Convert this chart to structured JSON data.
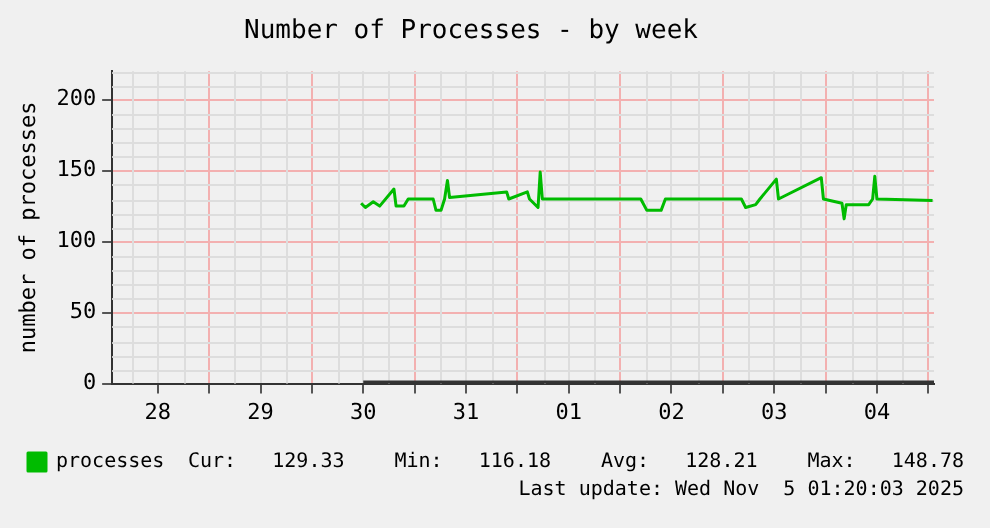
{
  "chart_data": {
    "type": "line",
    "title": "Number of Processes - by week",
    "ylabel": "number of processes",
    "xlim": [
      "2025-10-28T01:20",
      "2025-11-05T01:20"
    ],
    "xticks": [
      {
        "value": "2025-10-28T12:00",
        "label": "28"
      },
      {
        "value": "2025-10-29T00:00",
        "label": null
      },
      {
        "value": "2025-10-29T12:00",
        "label": "29"
      },
      {
        "value": "2025-10-30T00:00",
        "label": null
      },
      {
        "value": "2025-10-30T12:00",
        "label": "30"
      },
      {
        "value": "2025-10-31T00:00",
        "label": null
      },
      {
        "value": "2025-10-31T12:00",
        "label": "31"
      },
      {
        "value": "2025-11-01T00:00",
        "label": null
      },
      {
        "value": "2025-11-01T12:00",
        "label": "01"
      },
      {
        "value": "2025-11-02T00:00",
        "label": null
      },
      {
        "value": "2025-11-02T12:00",
        "label": "02"
      },
      {
        "value": "2025-11-03T00:00",
        "label": null
      },
      {
        "value": "2025-11-03T12:00",
        "label": "03"
      },
      {
        "value": "2025-11-04T00:00",
        "label": null
      },
      {
        "value": "2025-11-04T12:00",
        "label": "04"
      },
      {
        "value": "2025-11-05T00:00",
        "label": null
      }
    ],
    "ylim": [
      0,
      220
    ],
    "yticks": [
      0,
      50,
      100,
      150,
      200
    ],
    "grid": true,
    "legend": "bottom left",
    "marker": "none",
    "line_style": "solid",
    "series": [
      {
        "name": "processes",
        "color": "#00bb00",
        "x": [
          "2025-10-30T11:30",
          "2025-10-30T12:30",
          "2025-10-30T14:20",
          "2025-10-30T15:50",
          "2025-10-30T19:10",
          "2025-10-30T19:40",
          "2025-10-30T21:30",
          "2025-10-30T22:30",
          "2025-10-31T04:20",
          "2025-10-31T05:00",
          "2025-10-31T06:10",
          "2025-10-31T07:00",
          "2025-10-31T07:40",
          "2025-10-31T08:10",
          "2025-10-31T21:30",
          "2025-10-31T22:00",
          "2025-11-01T02:20",
          "2025-11-01T02:50",
          "2025-11-01T04:50",
          "2025-11-01T05:20",
          "2025-11-01T05:50",
          "2025-11-02T04:50",
          "2025-11-02T06:15",
          "2025-11-02T09:35",
          "2025-11-02T10:35",
          "2025-11-03T04:20",
          "2025-11-03T05:20",
          "2025-11-03T07:40",
          "2025-11-03T08:40",
          "2025-11-03T12:30",
          "2025-11-03T13:00",
          "2025-11-03T23:00",
          "2025-11-03T23:30",
          "2025-11-04T03:50",
          "2025-11-04T04:20",
          "2025-11-04T04:50",
          "2025-11-04T10:05",
          "2025-11-04T11:00",
          "2025-11-04T11:30",
          "2025-11-04T12:00",
          "2025-11-05T01:00"
        ],
        "values": [
          127,
          124,
          128,
          125,
          137,
          125,
          125,
          130,
          130,
          122,
          122,
          130,
          143,
          131,
          135,
          130,
          135,
          130,
          124,
          149,
          130,
          130,
          122,
          122,
          130,
          130,
          124,
          126,
          130,
          144,
          130,
          145,
          130,
          127,
          116,
          126,
          126,
          130,
          146,
          130,
          129
        ]
      },
      {
        "color": "#333333",
        "x": [
          "2025-10-30T12:00",
          "2025-11-05T01:20"
        ],
        "values": [
          0,
          0
        ]
      }
    ],
    "annotations": [
      "Cur:   129.33",
      "Min:   116.18",
      "Avg:   128.21",
      "Max:   148.78",
      "Last update: Wed Nov  5 01:20:03 2025"
    ]
  }
}
